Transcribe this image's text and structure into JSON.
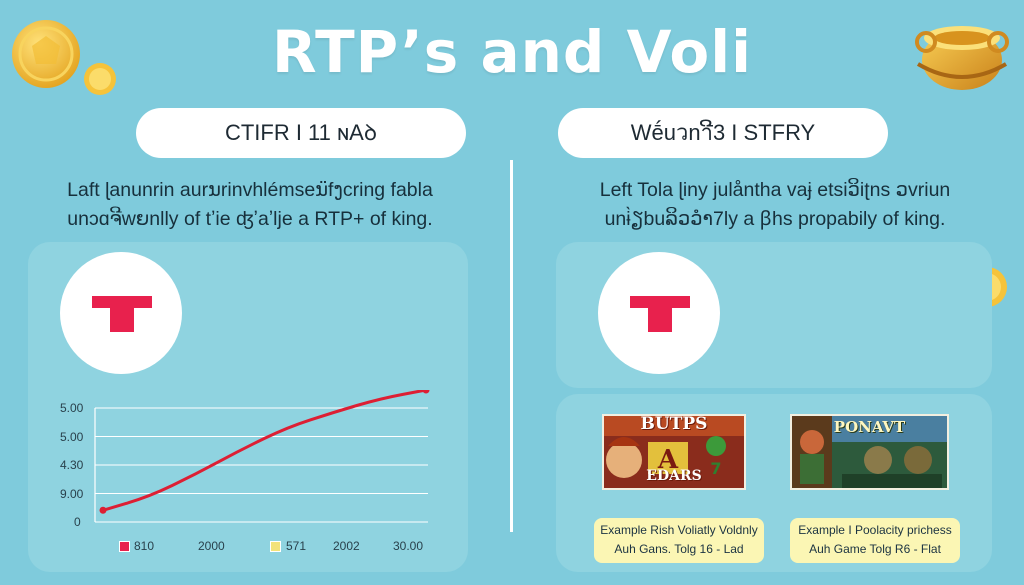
{
  "title": "RTP’s and Voli",
  "left": {
    "pill": "CTIFR I 11 ɴAꝺ",
    "desc_line1": "Laft ɭanunrin aurນrinvhlémseນ̈fງcring fabla",
    "desc_line2": "unɔɑຈີwຍnlly of tʼie ʤʼaʼlje a RTP+ of king.",
    "chart_data": {
      "type": "line",
      "yticks": [
        "5.00",
        "5.00",
        "4.30",
        "9.00",
        "0"
      ],
      "xtick_labels": [
        "810",
        "2000",
        "571",
        "2002",
        "30.00"
      ],
      "series": [
        {
          "values": [
            0.03,
            0.14,
            0.32,
            0.52,
            0.7,
            0.82,
            0.93,
            1.0
          ]
        }
      ],
      "ylim": [
        0,
        1
      ],
      "line_color": "#dd1f34",
      "legend": [
        {
          "label": "810",
          "color": "#e8214d"
        },
        {
          "label": "571",
          "color": "#f3e27a"
        }
      ]
    }
  },
  "right": {
    "pill": "Wḗuวnาີ3 I STFRY",
    "desc_line1": "Left Tola ɭiny julånthа vaɉ etsiວິiʈns ວvriun",
    "desc_line2": "unɨ̀ຽbuລິວວຳ7ly a ꞵhs propabily of king.",
    "game1": {
      "title_top": "BUTPS",
      "title_bottom": "EDARS"
    },
    "game2": {
      "title_top": "PONAVT"
    },
    "caption1_line1": "Example Rish Voliatly Voldnly",
    "caption1_line2": "Auh Gans. Tolg 16 - Lad",
    "caption2_line1": "Example I Poolacity prichess",
    "caption2_line2": "Auh Game Tolg R6 - Flat"
  },
  "colors": {
    "background": "#7fcbdc",
    "accent": "#e8214d",
    "caption_bg": "#fbf6b4",
    "coin": "#f5c33a"
  },
  "icons": [
    "gold-coin-icon",
    "gold-coin-small-icon",
    "treasure-pot-icon",
    "t-logo-icon"
  ]
}
